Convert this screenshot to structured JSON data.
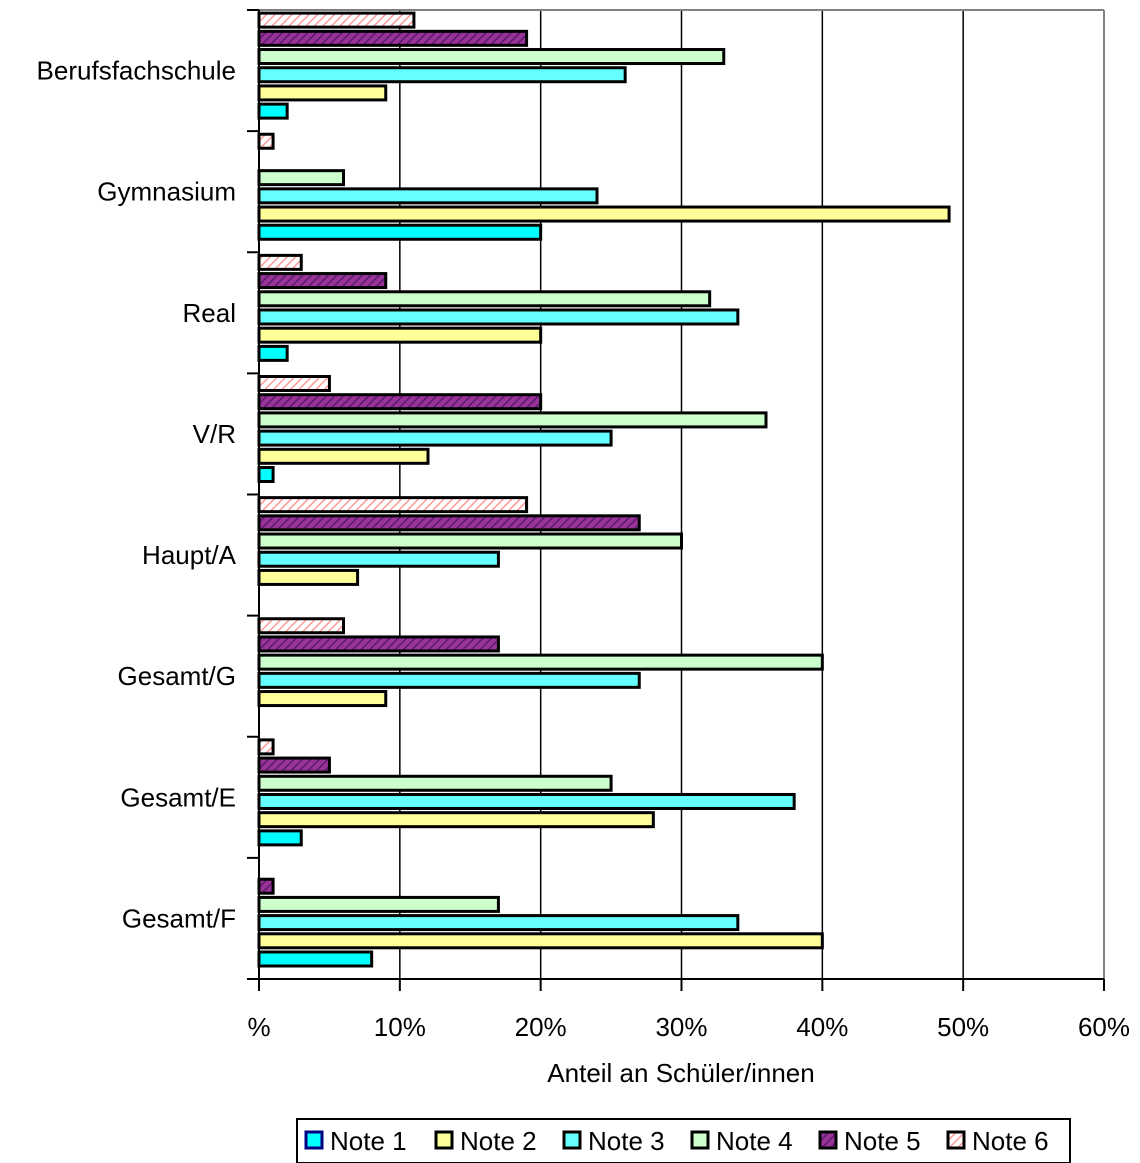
{
  "chart_data": {
    "type": "bar",
    "orientation": "horizontal",
    "categories": [
      "Berufsfachschule",
      "Gymnasium",
      "Real",
      "V/R",
      "Haupt/A",
      "Gesamt/G",
      "Gesamt/E",
      "Gesamt/F"
    ],
    "series": [
      {
        "name": "Note 1",
        "color": "#00ffff",
        "values": [
          2,
          20,
          2,
          1,
          0,
          0,
          3,
          8
        ]
      },
      {
        "name": "Note 2",
        "color": "#ffff99",
        "values": [
          9,
          49,
          20,
          12,
          7,
          9,
          28,
          40
        ]
      },
      {
        "name": "Note 3",
        "color": "#66ffff",
        "values": [
          26,
          24,
          34,
          25,
          17,
          27,
          38,
          34
        ]
      },
      {
        "name": "Note 4",
        "color": "#ccffcc",
        "values": [
          33,
          6,
          32,
          36,
          30,
          40,
          25,
          17
        ]
      },
      {
        "name": "Note 5",
        "color": "#993399",
        "values": [
          19,
          0,
          9,
          20,
          27,
          17,
          5,
          1
        ]
      },
      {
        "name": "Note 6",
        "color": "#ffcccc",
        "values": [
          11,
          1,
          3,
          5,
          19,
          6,
          1,
          0
        ]
      }
    ],
    "xlabel": "Anteil an Schüler/innen",
    "xlim": [
      0,
      60
    ],
    "xticks": [
      "%",
      "10%",
      "20%",
      "30%",
      "40%",
      "50%",
      "60%"
    ],
    "grid": "vertical",
    "legend": "bottom"
  }
}
